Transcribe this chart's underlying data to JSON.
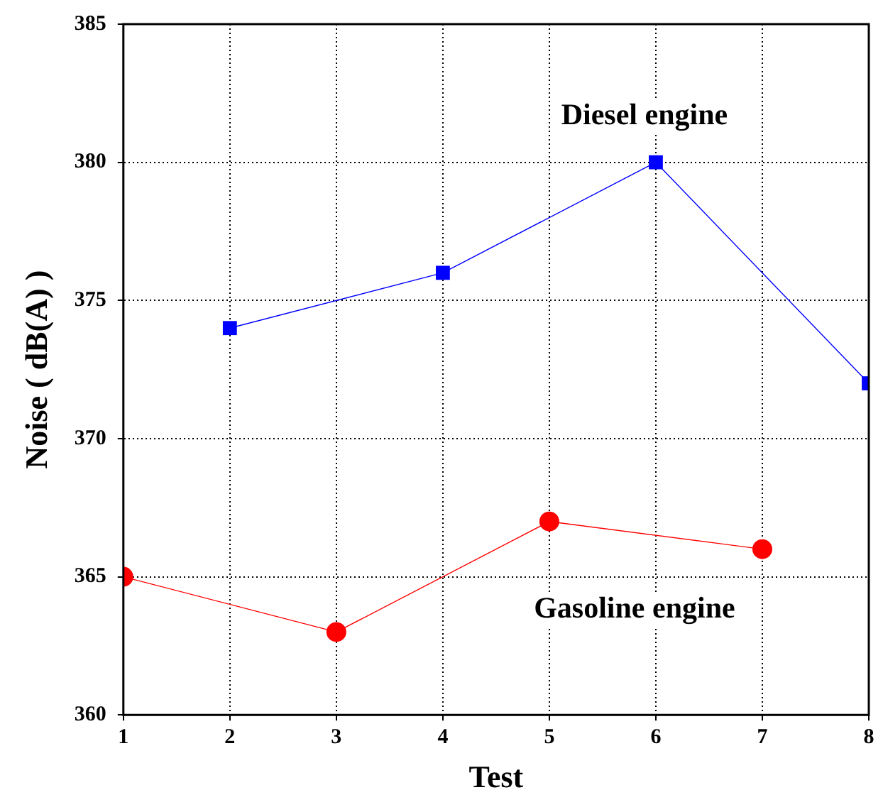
{
  "chart_data": {
    "type": "line",
    "xlabel": "Test",
    "ylabel": "Noise ( dB(A) )",
    "series": [
      {
        "name": "Diesel engine",
        "color": "#0000ff",
        "marker": "square",
        "x": [
          2,
          4,
          6,
          8
        ],
        "values": [
          374,
          376,
          380,
          372
        ]
      },
      {
        "name": "Gasoline engine",
        "color": "#ff0000",
        "marker": "circle",
        "x": [
          1,
          3,
          5,
          7
        ],
        "values": [
          365,
          363,
          367,
          366
        ]
      }
    ],
    "xlim": [
      1,
      8
    ],
    "xticks": [
      1,
      2,
      3,
      4,
      5,
      6,
      7,
      8
    ],
    "ylim": [
      360,
      385
    ],
    "yticks": [
      360,
      365,
      370,
      375,
      380,
      385
    ],
    "grid": true,
    "legend": false,
    "line_style": "solid"
  }
}
